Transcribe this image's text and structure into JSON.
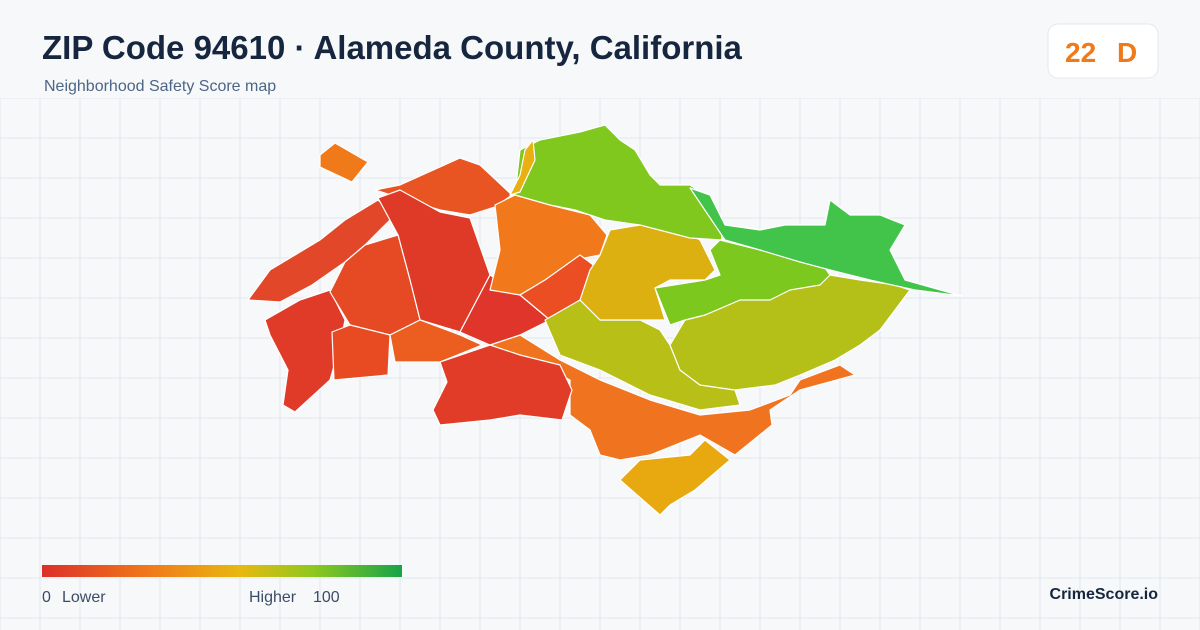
{
  "header": {
    "title": "ZIP Code 94610 · Alameda County, California",
    "subtitle": "Neighborhood Safety Score map"
  },
  "badge": {
    "score": 22,
    "grade": "D"
  },
  "legend": {
    "min": 0,
    "min_label": "Lower",
    "max_label": "Higher",
    "max": 100
  },
  "footer": {
    "brand": "CrimeScore.io"
  }
}
